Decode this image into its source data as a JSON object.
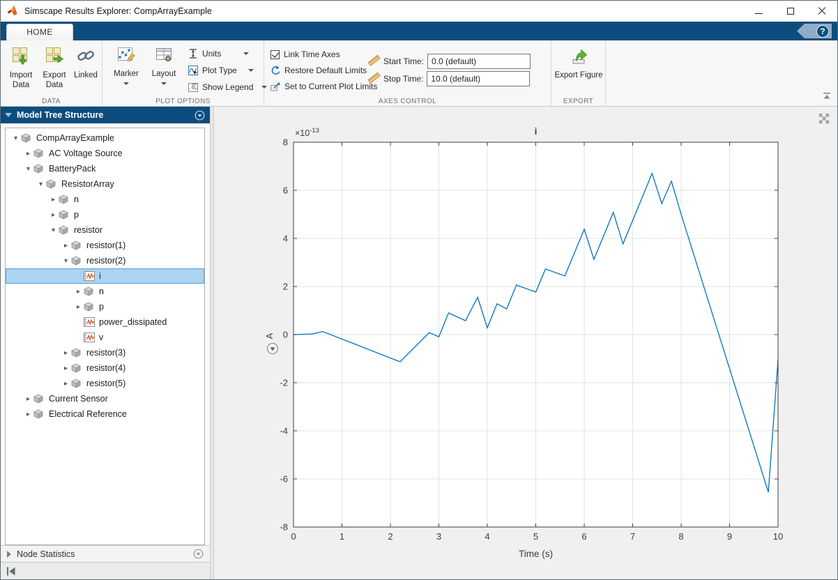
{
  "window": {
    "title": "Simscape Results Explorer: CompArrayExample"
  },
  "tabs": {
    "home": "HOME",
    "help": "?"
  },
  "ribbon": {
    "data": {
      "label": "DATA",
      "import": "Import Data",
      "export": "Export Data",
      "linked": "Linked"
    },
    "plot_options": {
      "label": "PLOT OPTIONS",
      "marker": "Marker",
      "layout": "Layout",
      "units": "Units",
      "plot_type": "Plot Type",
      "show_legend": "Show Legend"
    },
    "axes_control": {
      "label": "AXES CONTROL",
      "link_time_axes": "Link Time Axes",
      "restore_default_limits": "Restore Default Limits",
      "set_to_current_plot_limits": "Set to Current Plot Limits",
      "start_time_label": "Start Time:",
      "start_time_value": "0.0 (default)",
      "stop_time_label": "Stop Time:",
      "stop_time_value": "10.0 (default)"
    },
    "export": {
      "label": "EXPORT",
      "export_figure": "Export Figure"
    }
  },
  "sidebar": {
    "header": "Model Tree Structure",
    "node_statistics": "Node Statistics",
    "tree": [
      {
        "label": "CompArrayExample",
        "level": 0,
        "state": "expanded",
        "icon": "block"
      },
      {
        "label": "AC Voltage Source",
        "level": 1,
        "state": "collapsed",
        "icon": "block"
      },
      {
        "label": "BatteryPack",
        "level": 1,
        "state": "expanded",
        "icon": "block"
      },
      {
        "label": "ResistorArray",
        "level": 2,
        "state": "expanded",
        "icon": "block"
      },
      {
        "label": "n",
        "level": 3,
        "state": "collapsed",
        "icon": "block"
      },
      {
        "label": "p",
        "level": 3,
        "state": "collapsed",
        "icon": "block"
      },
      {
        "label": "resistor",
        "level": 3,
        "state": "expanded",
        "icon": "block"
      },
      {
        "label": "resistor(1)",
        "level": 4,
        "state": "collapsed",
        "icon": "block"
      },
      {
        "label": "resistor(2)",
        "level": 4,
        "state": "expanded",
        "icon": "block"
      },
      {
        "label": "i",
        "level": 5,
        "state": "leaf",
        "icon": "signal",
        "selected": true
      },
      {
        "label": "n",
        "level": 5,
        "state": "collapsed",
        "icon": "block"
      },
      {
        "label": "p",
        "level": 5,
        "state": "collapsed",
        "icon": "block"
      },
      {
        "label": "power_dissipated",
        "level": 5,
        "state": "leaf",
        "icon": "signal"
      },
      {
        "label": "v",
        "level": 5,
        "state": "leaf",
        "icon": "signal"
      },
      {
        "label": "resistor(3)",
        "level": 4,
        "state": "collapsed",
        "icon": "block"
      },
      {
        "label": "resistor(4)",
        "level": 4,
        "state": "collapsed",
        "icon": "block"
      },
      {
        "label": "resistor(5)",
        "level": 4,
        "state": "collapsed",
        "icon": "block"
      },
      {
        "label": "Current Sensor",
        "level": 1,
        "state": "collapsed",
        "icon": "block"
      },
      {
        "label": "Electrical Reference",
        "level": 1,
        "state": "collapsed",
        "icon": "block"
      }
    ]
  },
  "chart_data": {
    "type": "line",
    "title": "i",
    "xlabel": "Time (s)",
    "ylabel": "A",
    "y_scale_base": "×10",
    "y_scale_exp": "-13",
    "xlim": [
      0,
      10
    ],
    "ylim": [
      -8,
      8
    ],
    "xticks": [
      "0",
      "1",
      "2",
      "3",
      "4",
      "5",
      "6",
      "7",
      "8",
      "9",
      "10"
    ],
    "yticks": [
      "-8",
      "-6",
      "-4",
      "-2",
      "0",
      "2",
      "4",
      "6",
      "8"
    ],
    "grid": true,
    "legend": "off",
    "line_color": "#0072bd",
    "series": [
      {
        "name": "i",
        "points": [
          [
            0,
            0
          ],
          [
            0.4,
            0.03
          ],
          [
            0.6,
            0.13
          ],
          [
            2.2,
            -1.13
          ],
          [
            2.8,
            0.08
          ],
          [
            3.0,
            -0.09
          ],
          [
            3.2,
            0.9
          ],
          [
            3.55,
            0.58
          ],
          [
            3.8,
            1.55
          ],
          [
            4.0,
            0.28
          ],
          [
            4.2,
            1.28
          ],
          [
            4.4,
            1.07
          ],
          [
            4.6,
            2.06
          ],
          [
            5.0,
            1.77
          ],
          [
            5.2,
            2.73
          ],
          [
            5.6,
            2.44
          ],
          [
            6.0,
            4.38
          ],
          [
            6.2,
            3.13
          ],
          [
            6.6,
            5.08
          ],
          [
            6.8,
            3.77
          ],
          [
            7.4,
            6.7
          ],
          [
            7.6,
            5.45
          ],
          [
            7.8,
            6.38
          ],
          [
            8.0,
            5.0
          ],
          [
            9.8,
            -6.55
          ],
          [
            10,
            -1.04
          ]
        ]
      }
    ]
  },
  "colors": {
    "accent_navy": "#0d4d7e",
    "line": "#0072bd",
    "selection_bg": "#abd4f2",
    "selection_border": "#56a0d3"
  }
}
